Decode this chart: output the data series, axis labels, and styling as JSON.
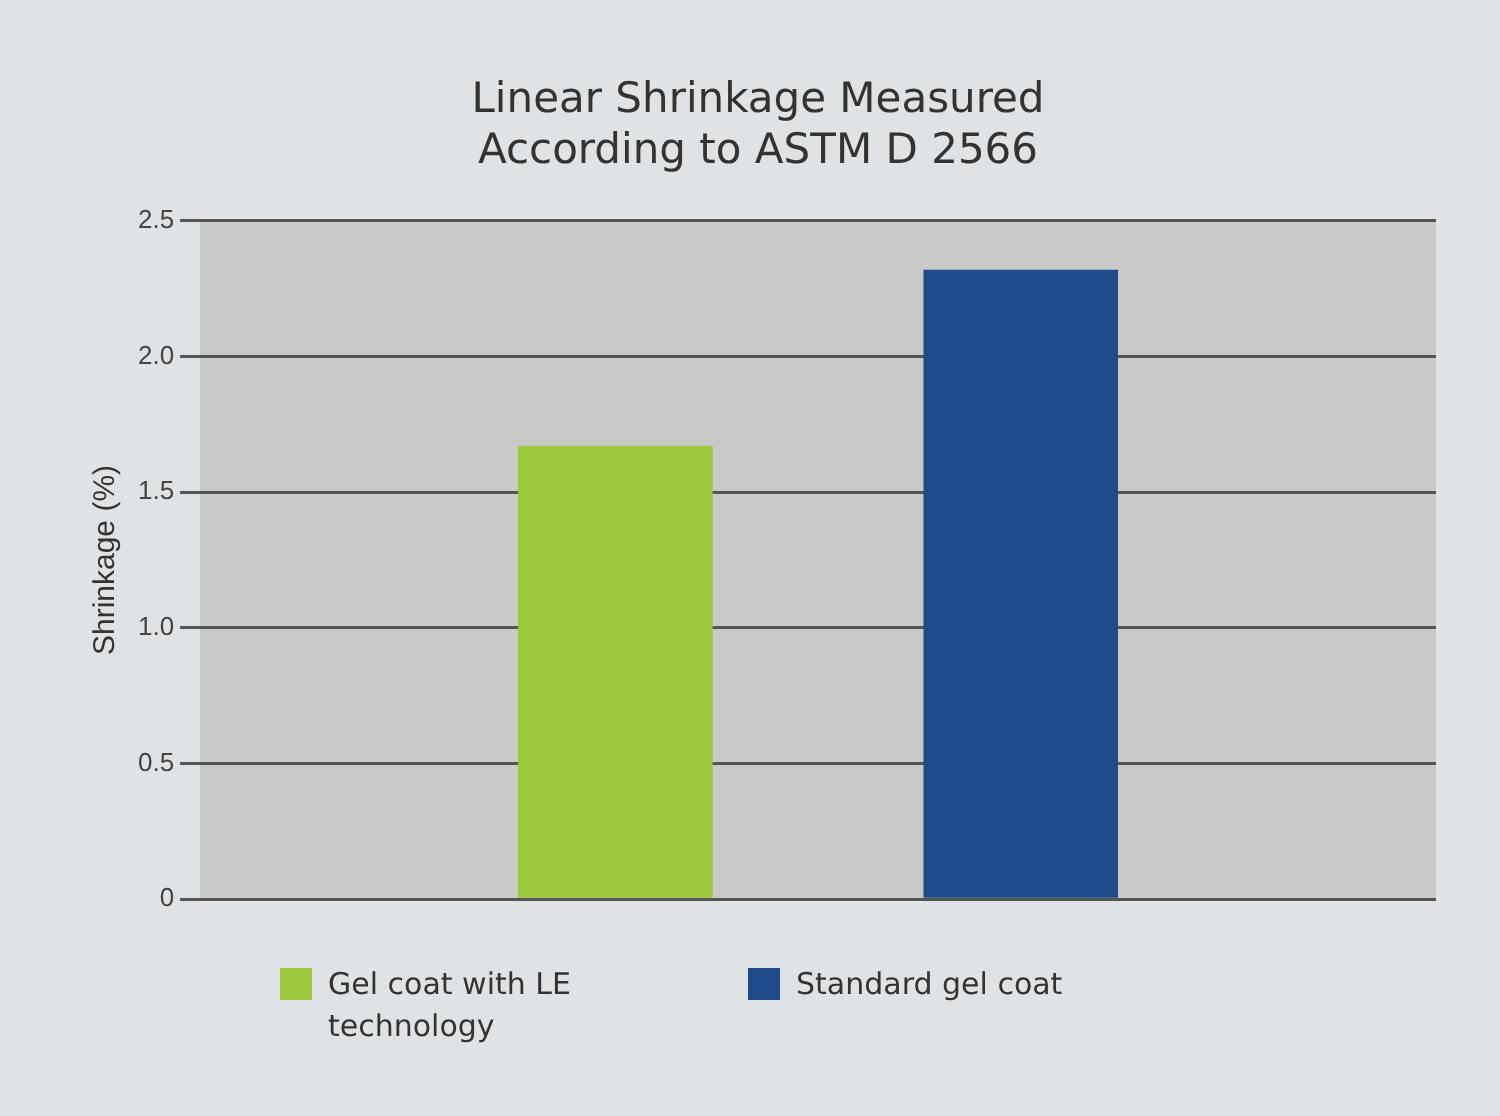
{
  "chart_data": {
    "type": "bar",
    "title": "Linear Shrinkage Measured\nAccording to ASTM D 2566",
    "ylabel": "Shrinkage (%)",
    "categories": [
      null
    ],
    "series": [
      {
        "name": "Gel coat with LE technology",
        "color": "#9cc83c",
        "values": [
          1.67
        ]
      },
      {
        "name": "Standard gel coat",
        "color": "#1f4a8a",
        "values": [
          2.32
        ]
      }
    ],
    "ylim": [
      0,
      2.5
    ],
    "yticks": [
      0,
      0.5,
      {
        "value": 1,
        "label": "1.0"
      },
      1.5,
      {
        "value": 2,
        "label": "2.0"
      },
      2.5
    ],
    "grid": "y",
    "legend": "bottom"
  }
}
